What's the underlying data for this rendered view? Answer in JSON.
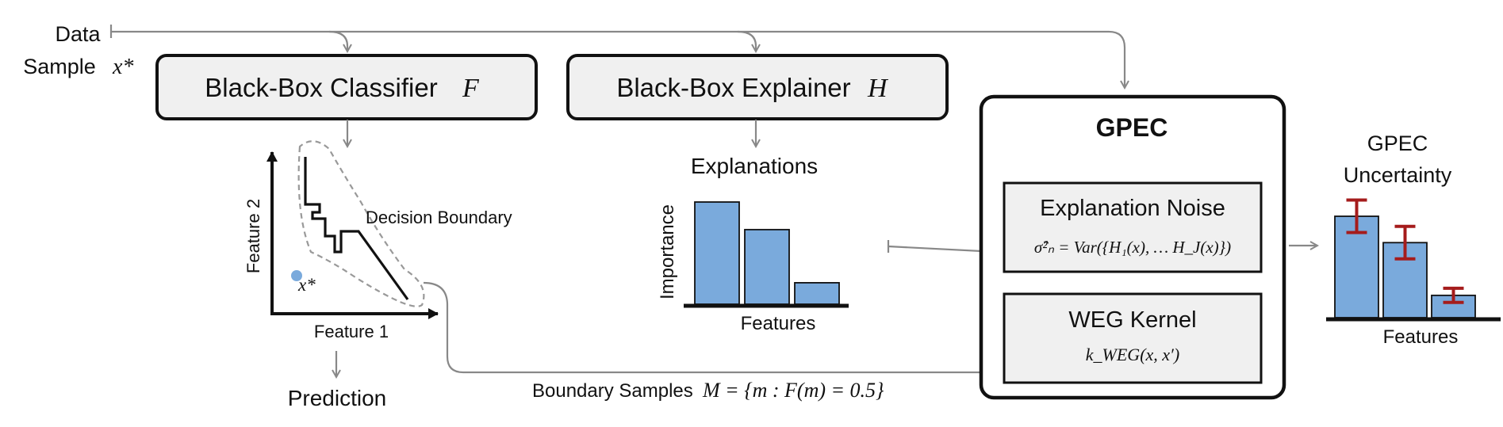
{
  "data_label": {
    "line1": "Data",
    "line2": "Sample",
    "var": "x*"
  },
  "classifier": {
    "label": "Black-Box Classifier",
    "var": "F"
  },
  "explainer": {
    "label": "Black-Box Explainer",
    "var": "H"
  },
  "plot": {
    "ylabel": "Feature 2",
    "xlabel": "Feature 1",
    "point_label": "x*",
    "boundary_label": "Decision Boundary",
    "point_color": "#7aaadc"
  },
  "prediction_label": "Prediction",
  "explanations": {
    "title": "Explanations",
    "ylabel": "Importance",
    "xlabel": "Features",
    "bar_color": "#7aaadc"
  },
  "gpec": {
    "title": "GPEC",
    "noise_title": "Explanation Noise",
    "noise_formula": "σ̂²ₙ = Var({H₁(x), … H_J(x)})",
    "kernel_title": "WEG Kernel",
    "kernel_formula": "k_WEG(x, x′)"
  },
  "boundary_samples": {
    "label": "Boundary Samples",
    "formula": "M = {m : F(m) = 0.5}"
  },
  "uncertainty": {
    "title_line1": "GPEC",
    "title_line2": "Uncertainty",
    "xlabel": "Features",
    "error_color": "#a51c1c"
  },
  "chart_data": [
    {
      "type": "bar",
      "title": "Explanations",
      "xlabel": "Features",
      "ylabel": "Importance",
      "categories": [
        "",
        "",
        ""
      ],
      "values": [
        1.0,
        0.73,
        0.21
      ],
      "ylim": [
        0,
        1.0
      ]
    },
    {
      "type": "bar",
      "title": "GPEC Uncertainty",
      "xlabel": "Features",
      "ylabel": "",
      "categories": [
        "",
        "",
        ""
      ],
      "values": [
        1.0,
        0.74,
        0.22
      ],
      "error": [
        0.16,
        0.16,
        0.07
      ],
      "ylim": [
        0,
        1.2
      ]
    }
  ]
}
